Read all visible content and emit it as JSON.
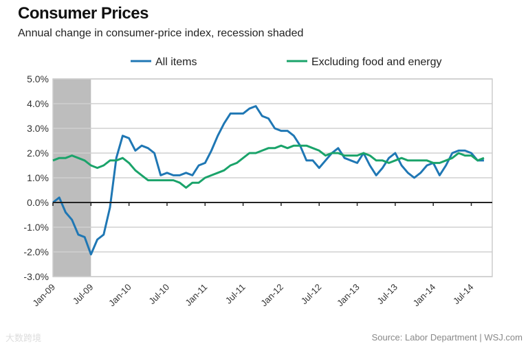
{
  "chart_data": {
    "type": "line",
    "title": "Consumer Prices",
    "subtitle": "Annual change in consumer-price index, recession shaded",
    "xlabel": "",
    "ylabel": "",
    "ylim": [
      -3,
      5
    ],
    "yticks": [
      5,
      4,
      3,
      2,
      1,
      0,
      -1,
      -2,
      -3
    ],
    "ytick_labels": [
      "5.0%",
      "4.0%",
      "3.0%",
      "2.0%",
      "1.0%",
      "0.0%",
      "-1.0%",
      "-2.0%",
      "-3.0%"
    ],
    "x_start": "Jan-09",
    "x_unit": "month",
    "xtick_labels": [
      "Jan-09",
      "Jul-09",
      "Jan-10",
      "Jul-10",
      "Jan-11",
      "Jul-11",
      "Jan-12",
      "Jul-12",
      "Jan-13",
      "Jul-13",
      "Jan-14",
      "Jul-14"
    ],
    "recession_months": [
      0,
      6
    ],
    "grid": true,
    "legend_position": "top",
    "series": [
      {
        "name": "All items",
        "color": "#1f77b4",
        "values": [
          0.0,
          0.2,
          -0.4,
          -0.7,
          -1.3,
          -1.4,
          -2.1,
          -1.5,
          -1.3,
          -0.2,
          1.8,
          2.7,
          2.6,
          2.1,
          2.3,
          2.2,
          2.0,
          1.1,
          1.2,
          1.1,
          1.1,
          1.2,
          1.1,
          1.5,
          1.6,
          2.1,
          2.7,
          3.2,
          3.6,
          3.6,
          3.6,
          3.8,
          3.9,
          3.5,
          3.4,
          3.0,
          2.9,
          2.9,
          2.7,
          2.3,
          1.7,
          1.7,
          1.4,
          1.7,
          2.0,
          2.2,
          1.8,
          1.7,
          1.6,
          2.0,
          1.5,
          1.1,
          1.4,
          1.8,
          2.0,
          1.5,
          1.2,
          1.0,
          1.2,
          1.5,
          1.6,
          1.1,
          1.5,
          2.0,
          2.1,
          2.1,
          2.0,
          1.7,
          1.7
        ]
      },
      {
        "name": "Excluding food and energy",
        "color": "#1aa36a",
        "values": [
          1.7,
          1.8,
          1.8,
          1.9,
          1.8,
          1.7,
          1.5,
          1.4,
          1.5,
          1.7,
          1.7,
          1.8,
          1.6,
          1.3,
          1.1,
          0.9,
          0.9,
          0.9,
          0.9,
          0.9,
          0.8,
          0.6,
          0.8,
          0.8,
          1.0,
          1.1,
          1.2,
          1.3,
          1.5,
          1.6,
          1.8,
          2.0,
          2.0,
          2.1,
          2.2,
          2.2,
          2.3,
          2.2,
          2.3,
          2.3,
          2.3,
          2.2,
          2.1,
          1.9,
          2.0,
          2.0,
          1.9,
          1.9,
          1.9,
          2.0,
          1.9,
          1.7,
          1.7,
          1.6,
          1.7,
          1.8,
          1.7,
          1.7,
          1.7,
          1.7,
          1.6,
          1.6,
          1.7,
          1.8,
          2.0,
          1.9,
          1.9,
          1.7,
          1.8
        ]
      }
    ]
  },
  "source": "Source: Labor Department  |  WSJ.com",
  "watermark": "大数跨境"
}
